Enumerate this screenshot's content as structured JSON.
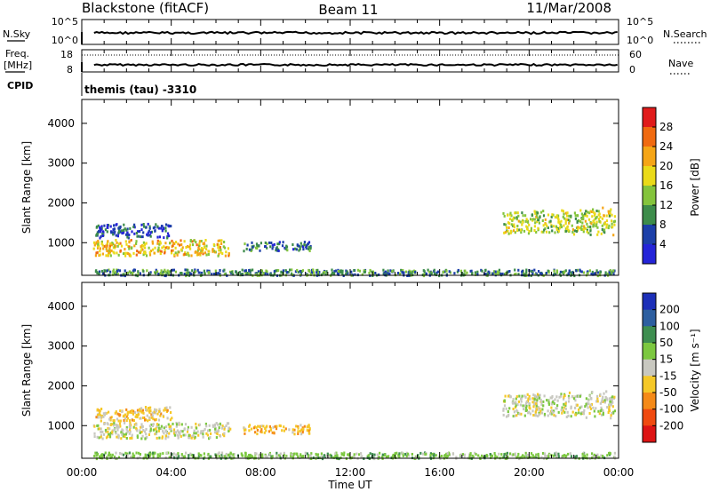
{
  "header": {
    "station": "Blackstone (fitACF)",
    "beam": "Beam 11",
    "date": "11/Mar/2008"
  },
  "strip_noise": {
    "left_label": "N.Sky",
    "right_label": "N.Search",
    "left_ticks": [
      "10^5",
      "10^0"
    ],
    "right_ticks": [
      "10^5",
      "10^0"
    ]
  },
  "strip_freq": {
    "left_label_1": "Freq.",
    "left_label_2": "[MHz]",
    "right_label": "Nave",
    "left_ticks": [
      "18",
      "8"
    ],
    "right_ticks": [
      "60",
      "0"
    ]
  },
  "cpid": {
    "label": "CPID",
    "value": "themis (tau) -3310"
  },
  "panels": {
    "power": {
      "ylabel": "Slant Range [km]",
      "cbar_label": "Power [dB]",
      "cbar_ticks": [
        "28",
        "24",
        "20",
        "16",
        "12",
        "8",
        "4"
      ],
      "cbar_colors": [
        "#e01b1b",
        "#f06a10",
        "#f5a516",
        "#eada19",
        "#84c43c",
        "#3d8c4a",
        "#1c3fa8",
        "#2424d8"
      ]
    },
    "velocity": {
      "ylabel": "Slant Range [km]",
      "cbar_label": "Velocity [m s⁻¹]",
      "cbar_ticks": [
        "200",
        "100",
        "50",
        "15",
        "-15",
        "-50",
        "-100",
        "-200"
      ],
      "cbar_colors": [
        "#1c2fb8",
        "#2d5fa0",
        "#3e8e50",
        "#7cc840",
        "#c8c8c0",
        "#f5c828",
        "#f58a18",
        "#f04a10",
        "#dd1414"
      ]
    }
  },
  "xaxis": {
    "label": "Time UT",
    "ticks": [
      "00:00",
      "04:00",
      "08:00",
      "12:00",
      "16:00",
      "20:00",
      "00:00"
    ]
  },
  "chart_data": [
    {
      "type": "heatmap",
      "title": "Power",
      "ylabel": "Slant Range [km]",
      "xlabel": "Time UT",
      "xlim": [
        0,
        24
      ],
      "ylim": [
        180,
        4600
      ],
      "yticks": [
        1000,
        2000,
        3000,
        4000
      ],
      "colorbar": {
        "label": "Power [dB]",
        "range": [
          0,
          32
        ]
      },
      "regions": [
        {
          "t0": 0.5,
          "t1": 6.6,
          "r0": 700,
          "r1": 1100,
          "value": 20
        },
        {
          "t0": 0.6,
          "t1": 4.0,
          "r0": 1150,
          "r1": 1500,
          "value": 6
        },
        {
          "t0": 7.2,
          "t1": 10.2,
          "r0": 820,
          "r1": 1050,
          "value": 8
        },
        {
          "t0": 18.8,
          "t1": 23.8,
          "r0": 1250,
          "r1": 1800,
          "value": 16
        },
        {
          "t0": 0.5,
          "t1": 23.8,
          "r0": 200,
          "r1": 350,
          "value": 10
        }
      ]
    },
    {
      "type": "heatmap",
      "title": "Velocity",
      "ylabel": "Slant Range [km]",
      "xlabel": "Time UT",
      "xlim": [
        0,
        24
      ],
      "ylim": [
        180,
        4600
      ],
      "yticks": [
        1000,
        2000,
        3000,
        4000
      ],
      "colorbar": {
        "label": "Velocity [m s⁻¹]",
        "range": [
          -250,
          250
        ]
      },
      "regions": [
        {
          "t0": 0.5,
          "t1": 6.6,
          "r0": 700,
          "r1": 1100,
          "value": 0
        },
        {
          "t0": 0.6,
          "t1": 4.0,
          "r0": 1150,
          "r1": 1500,
          "value": -30
        },
        {
          "t0": 7.2,
          "t1": 10.2,
          "r0": 820,
          "r1": 1050,
          "value": -40
        },
        {
          "t0": 18.8,
          "t1": 23.8,
          "r0": 1250,
          "r1": 1800,
          "value": 0
        },
        {
          "t0": 0.5,
          "t1": 23.8,
          "r0": 200,
          "r1": 350,
          "value": 30
        }
      ]
    }
  ]
}
